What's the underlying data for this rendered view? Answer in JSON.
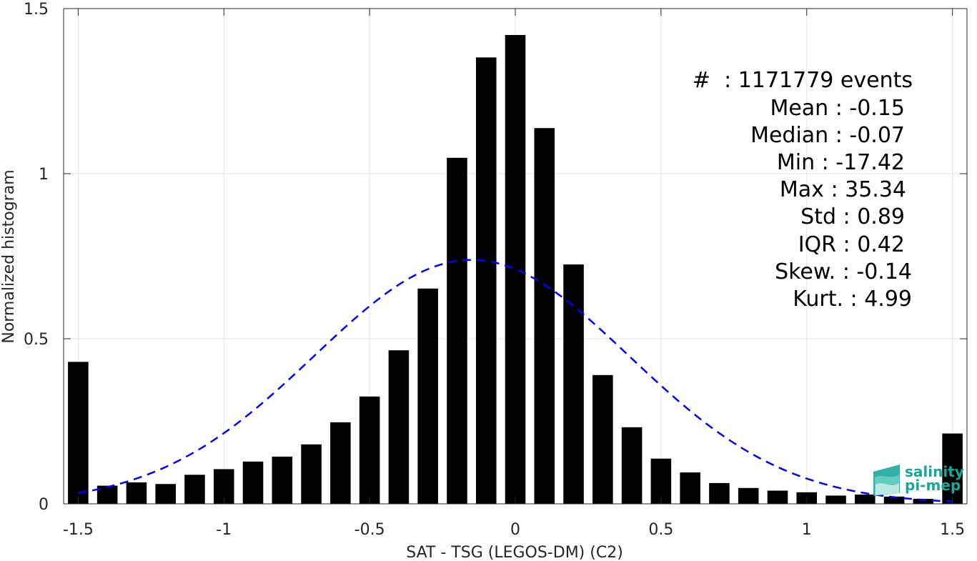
{
  "chart_data": {
    "type": "bar",
    "xlabel": "SAT - TSG (LEGOS-DM) (C2)",
    "ylabel": "Normalized histogram",
    "xlim": [
      -1.55,
      1.55
    ],
    "ylim": [
      0,
      1.5
    ],
    "xticks": [
      -1.5,
      -1,
      -0.5,
      0,
      0.5,
      1,
      1.5
    ],
    "xtick_labels": [
      "-1.5",
      "-1",
      "-0.5",
      "0",
      "0.5",
      "1",
      "1.5"
    ],
    "yticks": [
      0,
      0.5,
      1,
      1.5
    ],
    "ytick_labels": [
      "0",
      "0.5",
      "1",
      "1.5"
    ],
    "grid": true,
    "bar_width": 0.07,
    "x": [
      -1.5,
      -1.4,
      -1.3,
      -1.2,
      -1.1,
      -1.0,
      -0.9,
      -0.8,
      -0.7,
      -0.6,
      -0.5,
      -0.4,
      -0.3,
      -0.2,
      -0.1,
      0.0,
      0.1,
      0.2,
      0.3,
      0.4,
      0.5,
      0.6,
      0.7,
      0.8,
      0.9,
      1.0,
      1.1,
      1.2,
      1.3,
      1.4,
      1.5
    ],
    "values": [
      0.43,
      0.055,
      0.065,
      0.06,
      0.088,
      0.105,
      0.128,
      0.143,
      0.18,
      0.247,
      0.325,
      0.465,
      0.652,
      1.048,
      1.352,
      1.42,
      1.138,
      0.725,
      0.39,
      0.232,
      0.137,
      0.095,
      0.063,
      0.048,
      0.04,
      0.035,
      0.025,
      0.028,
      0.022,
      0.015,
      0.213
    ],
    "fit": {
      "style": "dashed",
      "color": "#0000ff",
      "mean": -0.15,
      "std": 0.54,
      "x_range": [
        -1.5,
        1.5
      ]
    },
    "stats_lines": [
      "#  : 1171779 events",
      "Mean : -0.15",
      "Median : -0.07",
      "Min : -17.42",
      "Max : 35.34",
      "Std : 0.89",
      "IQR : 0.42",
      "Skew. : -0.14",
      "Kurt. : 4.99"
    ]
  },
  "logo": {
    "line1": "salinity",
    "line2": "pi-mep",
    "color": "#18a89a"
  },
  "colors": {
    "bar": "#000000",
    "axis": "#262626",
    "grid": "#e6e6e6"
  }
}
